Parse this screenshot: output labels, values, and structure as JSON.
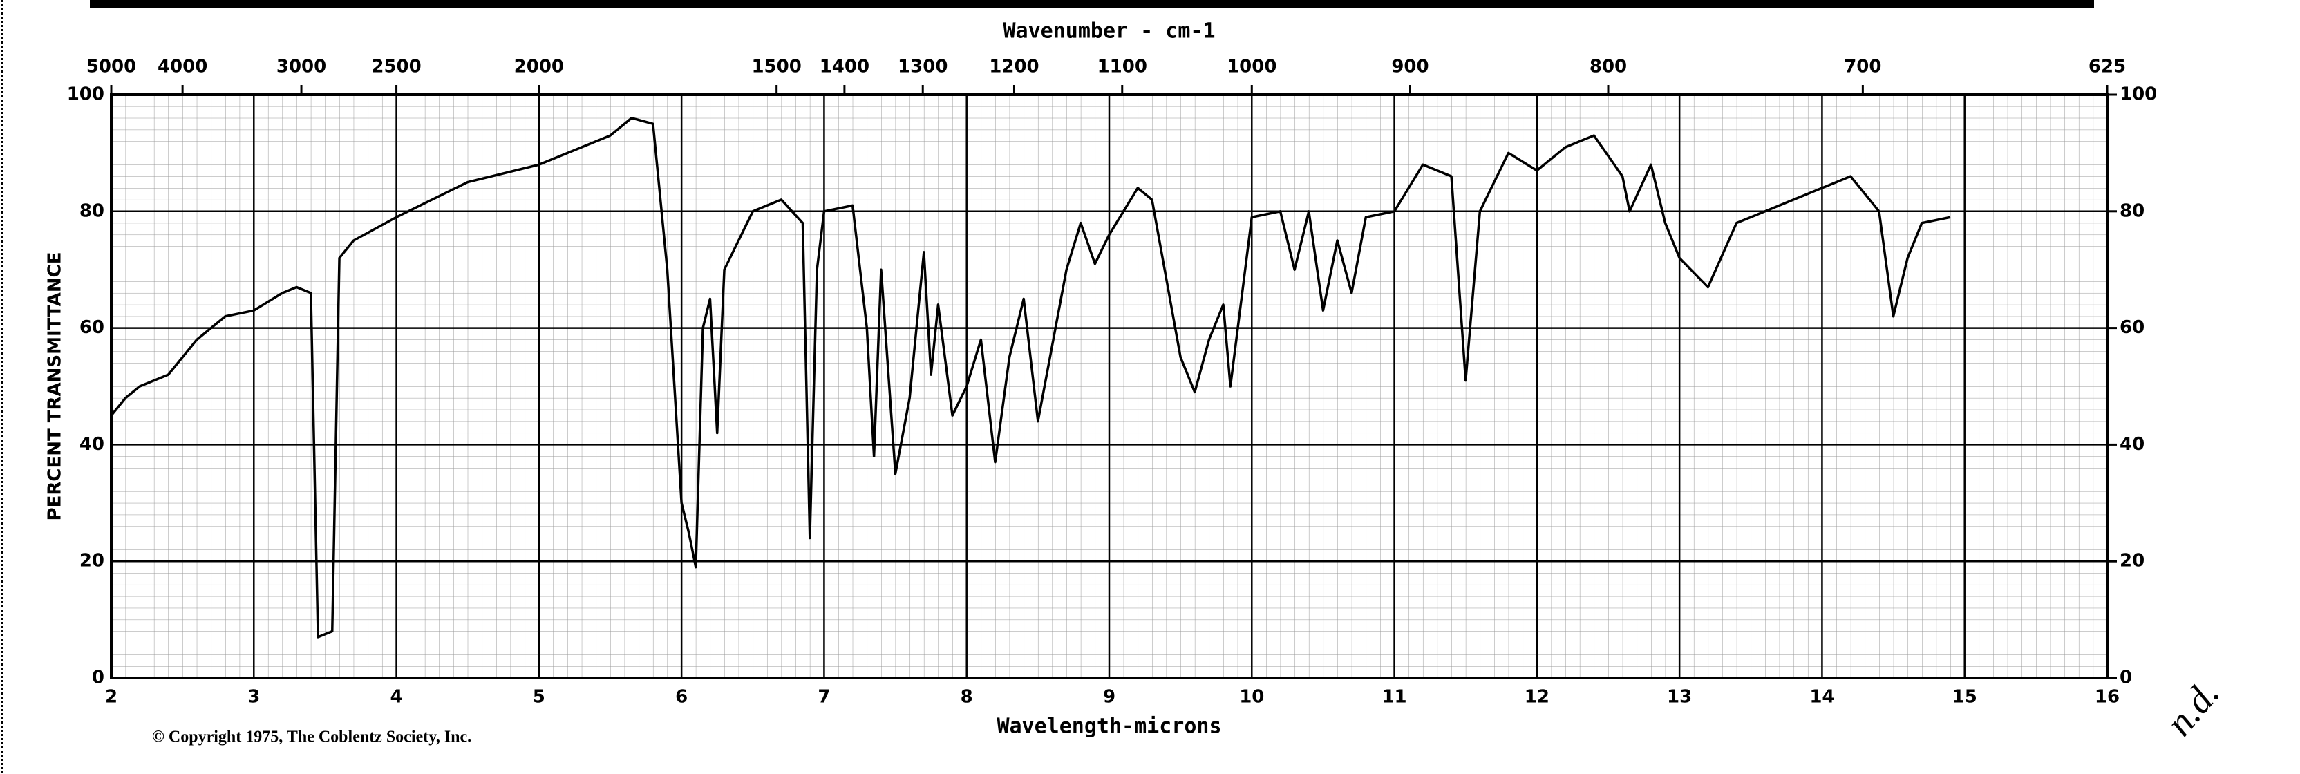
{
  "chart_data": {
    "type": "line",
    "title": "Wavenumber - cm-1",
    "x_label": "Wavelength-microns",
    "y_label": "PERCENT TRANSMITTANCE",
    "copyright": "© Copyright 1975, The Coblentz Society, Inc.",
    "annotation": "n.d.",
    "xlim": [
      2,
      16
    ],
    "xticks": [
      2,
      3,
      4,
      5,
      6,
      7,
      8,
      9,
      10,
      11,
      12,
      13,
      14,
      15,
      16
    ],
    "ylim": [
      0,
      100
    ],
    "yticks": [
      0,
      20,
      40,
      60,
      80,
      100
    ],
    "y2lim": [
      0,
      100
    ],
    "y2ticks": [
      0,
      20,
      40,
      60,
      80,
      100
    ],
    "top_ticks": [
      5000,
      4000,
      3000,
      2500,
      2000,
      1500,
      1400,
      1300,
      1200,
      1100,
      1000,
      900,
      800,
      700,
      625
    ],
    "grid": true,
    "x": [
      2.0,
      2.1,
      2.2,
      2.4,
      2.5,
      2.6,
      2.8,
      3.0,
      3.2,
      3.3,
      3.4,
      3.45,
      3.55,
      3.6,
      3.7,
      4.0,
      4.5,
      5.0,
      5.5,
      5.65,
      5.8,
      5.9,
      6.0,
      6.05,
      6.1,
      6.15,
      6.2,
      6.25,
      6.3,
      6.5,
      6.7,
      6.85,
      6.9,
      6.95,
      7.0,
      7.2,
      7.3,
      7.35,
      7.4,
      7.5,
      7.6,
      7.7,
      7.75,
      7.8,
      7.9,
      8.0,
      8.1,
      8.2,
      8.3,
      8.4,
      8.5,
      8.7,
      8.8,
      8.9,
      9.0,
      9.2,
      9.3,
      9.5,
      9.6,
      9.7,
      9.8,
      9.85,
      10.0,
      10.2,
      10.3,
      10.4,
      10.5,
      10.6,
      10.7,
      10.8,
      11.0,
      11.2,
      11.4,
      11.5,
      11.6,
      11.8,
      12.0,
      12.2,
      12.4,
      12.6,
      12.65,
      12.8,
      12.9,
      13.0,
      13.2,
      13.4,
      13.8,
      14.2,
      14.4,
      14.5,
      14.6,
      14.7,
      14.9
    ],
    "series": [
      {
        "color": "#000000",
        "values": [
          45,
          48,
          50,
          52,
          55,
          58,
          62,
          63,
          66,
          67,
          66,
          7,
          8,
          72,
          75,
          79,
          85,
          88,
          93,
          96,
          95,
          70,
          30,
          25,
          19,
          60,
          65,
          42,
          70,
          80,
          82,
          78,
          24,
          70,
          80,
          81,
          60,
          38,
          70,
          35,
          48,
          73,
          52,
          64,
          45,
          50,
          58,
          37,
          55,
          65,
          44,
          70,
          78,
          71,
          76,
          84,
          82,
          55,
          49,
          58,
          64,
          50,
          79,
          80,
          70,
          80,
          63,
          75,
          66,
          79,
          80,
          88,
          86,
          51,
          80,
          90,
          87,
          91,
          93,
          86,
          80,
          88,
          78,
          72,
          67,
          78,
          82,
          86,
          80,
          62,
          72,
          78,
          79
        ]
      }
    ]
  }
}
